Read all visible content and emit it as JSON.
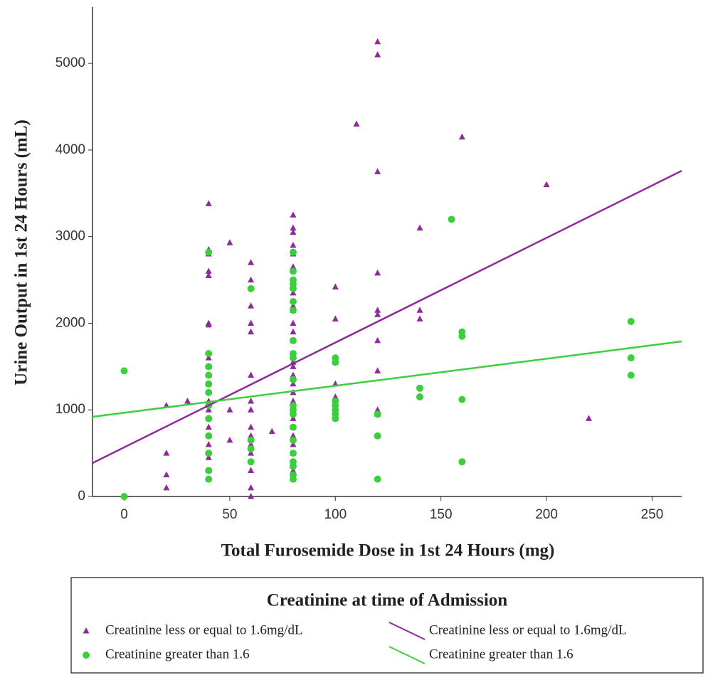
{
  "chart_data": {
    "type": "scatter",
    "xlabel": "Total Furosemide Dose in 1st 24 Hours (mg)",
    "ylabel": "Urine Output in 1st 24 Hours (mL)",
    "legend_title": "Creatinine at time of Admission",
    "xlim": [
      -15,
      264
    ],
    "ylim": [
      0,
      5650
    ],
    "xticks": [
      0,
      50,
      100,
      150,
      200,
      250
    ],
    "yticks": [
      0,
      1000,
      2000,
      3000,
      4000,
      5000
    ],
    "series": [
      {
        "name": "Creatinine less or equal to 1.6mg/dL",
        "type": "scatter",
        "marker": "triangle",
        "color": "#8e2a9c",
        "x": [
          20,
          20,
          20,
          20,
          30,
          40,
          40,
          40,
          40,
          40,
          40,
          40,
          40,
          40,
          40,
          40,
          40,
          40,
          40,
          40,
          40,
          40,
          40,
          40,
          40,
          50,
          50,
          50,
          60,
          60,
          60,
          60,
          60,
          60,
          60,
          60,
          60,
          60,
          60,
          60,
          60,
          60,
          60,
          70,
          80,
          80,
          80,
          80,
          80,
          80,
          80,
          80,
          80,
          80,
          80,
          80,
          80,
          80,
          80,
          80,
          80,
          80,
          80,
          80,
          80,
          80,
          80,
          80,
          80,
          80,
          80,
          80,
          80,
          80,
          100,
          100,
          100,
          100,
          100,
          110,
          120,
          120,
          120,
          120,
          120,
          120,
          120,
          120,
          120,
          120,
          120,
          140,
          140,
          140,
          160,
          200,
          220
        ],
        "values": [
          1050,
          500,
          250,
          100,
          1100,
          3380,
          2850,
          2800,
          2600,
          2550,
          2000,
          1980,
          1600,
          1500,
          1400,
          1300,
          1100,
          1000,
          900,
          800,
          700,
          600,
          450,
          300,
          200,
          2930,
          1000,
          650,
          2700,
          2500,
          2200,
          2000,
          1900,
          1400,
          1100,
          1000,
          800,
          700,
          600,
          500,
          300,
          100,
          0,
          750,
          3250,
          3100,
          3050,
          2900,
          2800,
          2650,
          2500,
          2350,
          2200,
          2150,
          2000,
          1900,
          1800,
          1650,
          1550,
          1500,
          1400,
          1300,
          1200,
          1100,
          1000,
          900,
          800,
          700,
          600,
          500,
          400,
          350,
          300,
          200,
          2420,
          2050,
          1550,
          1300,
          1150,
          4300,
          5250,
          5100,
          3750,
          2580,
          2150,
          2100,
          1800,
          1450,
          1000,
          950,
          700,
          3100,
          2150,
          2050,
          4150,
          3600,
          900
        ]
      },
      {
        "name": "Creatinine greater than 1.6",
        "type": "scatter",
        "marker": "circle",
        "color": "#3ccf3c",
        "x": [
          0,
          0,
          40,
          40,
          40,
          40,
          40,
          40,
          40,
          40,
          40,
          40,
          40,
          40,
          60,
          60,
          60,
          60,
          80,
          80,
          80,
          80,
          80,
          80,
          80,
          80,
          80,
          80,
          80,
          80,
          80,
          80,
          80,
          80,
          80,
          80,
          80,
          80,
          80,
          100,
          100,
          100,
          100,
          100,
          100,
          100,
          120,
          120,
          120,
          140,
          140,
          155,
          160,
          160,
          160,
          160,
          240,
          240,
          240
        ],
        "values": [
          1450,
          0,
          2820,
          1650,
          1500,
          1400,
          1300,
          1200,
          1050,
          900,
          700,
          500,
          300,
          200,
          2400,
          650,
          550,
          400,
          2820,
          2600,
          2500,
          2450,
          2400,
          2250,
          2150,
          1800,
          1650,
          1600,
          1350,
          1050,
          1000,
          950,
          800,
          650,
          500,
          400,
          350,
          250,
          200,
          1600,
          1550,
          1100,
          1050,
          1000,
          950,
          900,
          950,
          700,
          200,
          1250,
          1150,
          3200,
          1900,
          1850,
          1120,
          400,
          2020,
          1600,
          1400
        ]
      },
      {
        "name": "Creatinine less or equal to 1.6mg/dL",
        "type": "line",
        "color": "#8e2a9c",
        "x": [
          -15,
          264
        ],
        "values": [
          386,
          3760
        ]
      },
      {
        "name": "Creatinine greater than 1.6",
        "type": "line",
        "color": "#3ccf3c",
        "x": [
          -15,
          264
        ],
        "values": [
          920,
          1790
        ]
      }
    ]
  }
}
